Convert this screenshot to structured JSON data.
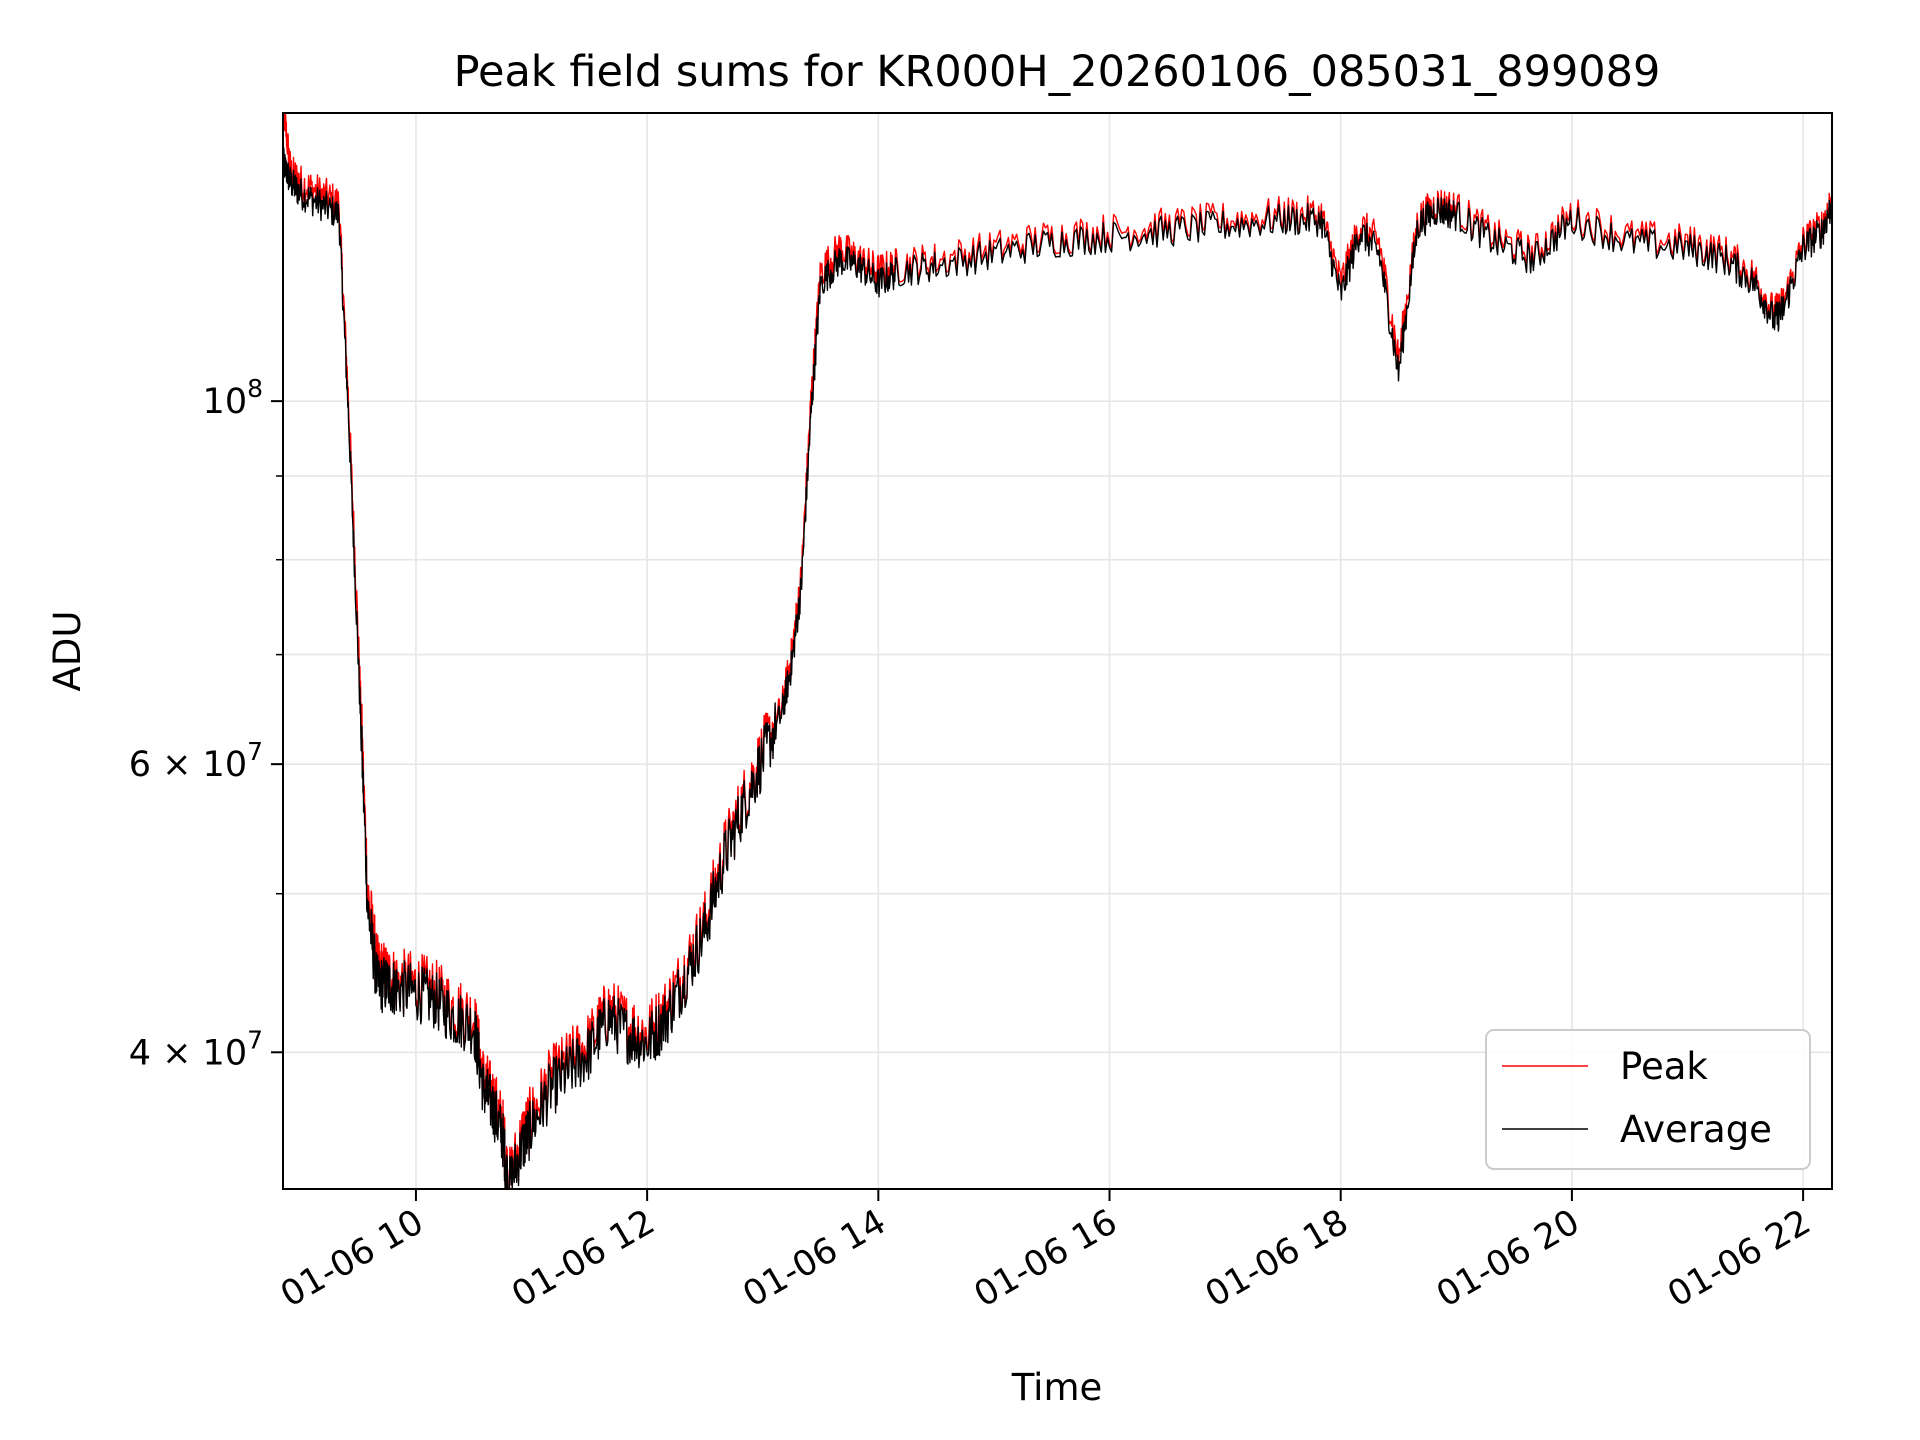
{
  "chart_data": {
    "type": "line",
    "title": "Peak field sums for KR000H_20260106_085031_899089",
    "xlabel": "Time",
    "ylabel": "ADU",
    "y_scale": "log",
    "xlim": [
      "2026-01-06 08:51",
      "2026-01-06 22:15"
    ],
    "ylim": [
      33000000,
      150000000
    ],
    "grid": true,
    "legend_position": "lower-right",
    "x_ticks": [
      {
        "value": "2026-01-06 10:00",
        "label": "01-06 10"
      },
      {
        "value": "2026-01-06 12:00",
        "label": "01-06 12"
      },
      {
        "value": "2026-01-06 14:00",
        "label": "01-06 14"
      },
      {
        "value": "2026-01-06 16:00",
        "label": "01-06 16"
      },
      {
        "value": "2026-01-06 18:00",
        "label": "01-06 18"
      },
      {
        "value": "2026-01-06 20:00",
        "label": "01-06 20"
      },
      {
        "value": "2026-01-06 22:00",
        "label": "01-06 22"
      }
    ],
    "y_ticks": [
      {
        "value": 40000000,
        "mantissa": "4 × ",
        "base": "10",
        "exp": "7"
      },
      {
        "value": 60000000,
        "mantissa": "6 × ",
        "base": "10",
        "exp": "7"
      },
      {
        "value": 100000000,
        "mantissa": "",
        "base": "10",
        "exp": "8"
      }
    ],
    "y_minor_ticks": [
      50000000,
      70000000,
      80000000,
      90000000
    ],
    "x": [
      "2026-01-06 08:51",
      "2026-01-06 08:55",
      "2026-01-06 09:00",
      "2026-01-06 09:10",
      "2026-01-06 09:20",
      "2026-01-06 09:25",
      "2026-01-06 09:30",
      "2026-01-06 09:35",
      "2026-01-06 09:40",
      "2026-01-06 09:45",
      "2026-01-06 09:50",
      "2026-01-06 10:00",
      "2026-01-06 10:10",
      "2026-01-06 10:20",
      "2026-01-06 10:30",
      "2026-01-06 10:35",
      "2026-01-06 10:40",
      "2026-01-06 10:45",
      "2026-01-06 10:48",
      "2026-01-06 10:55",
      "2026-01-06 11:00",
      "2026-01-06 11:10",
      "2026-01-06 11:20",
      "2026-01-06 11:30",
      "2026-01-06 11:40",
      "2026-01-06 11:50",
      "2026-01-06 12:00",
      "2026-01-06 12:10",
      "2026-01-06 12:20",
      "2026-01-06 12:30",
      "2026-01-06 12:40",
      "2026-01-06 12:50",
      "2026-01-06 13:00",
      "2026-01-06 13:10",
      "2026-01-06 13:15",
      "2026-01-06 13:20",
      "2026-01-06 13:25",
      "2026-01-06 13:30",
      "2026-01-06 13:40",
      "2026-01-06 13:50",
      "2026-01-06 14:00",
      "2026-01-06 14:10",
      "2026-01-06 14:30",
      "2026-01-06 15:00",
      "2026-01-06 15:30",
      "2026-01-06 16:00",
      "2026-01-06 16:30",
      "2026-01-06 17:00",
      "2026-01-06 17:30",
      "2026-01-06 17:50",
      "2026-01-06 18:00",
      "2026-01-06 18:10",
      "2026-01-06 18:20",
      "2026-01-06 18:30",
      "2026-01-06 18:40",
      "2026-01-06 18:50",
      "2026-01-06 19:00",
      "2026-01-06 19:20",
      "2026-01-06 19:40",
      "2026-01-06 20:00",
      "2026-01-06 20:30",
      "2026-01-06 21:00",
      "2026-01-06 21:20",
      "2026-01-06 21:35",
      "2026-01-06 21:45",
      "2026-01-06 21:50",
      "2026-01-06 22:00",
      "2026-01-06 22:10",
      "2026-01-06 22:15"
    ],
    "series": [
      {
        "name": "Peak",
        "color": "#ff0000",
        "values": [
          152000000,
          138000000,
          136000000,
          134000000,
          132000000,
          100000000,
          72000000,
          50000000,
          45000000,
          44500000,
          44200000,
          44000000,
          43500000,
          42500000,
          42000000,
          38500000,
          37500000,
          36000000,
          33200000,
          35500000,
          36500000,
          38500000,
          39500000,
          40500000,
          42500000,
          41500000,
          41000000,
          42500000,
          45000000,
          48000000,
          53000000,
          57000000,
          61000000,
          65000000,
          70000000,
          78000000,
          100000000,
          120000000,
          124000000,
          122000000,
          120000000,
          121000000,
          122000000,
          124000000,
          126000000,
          127000000,
          128000000,
          129000000,
          130000000,
          130000000,
          118000000,
          128000000,
          125000000,
          106000000,
          129000000,
          132000000,
          131000000,
          126000000,
          123000000,
          130000000,
          126000000,
          125000000,
          123000000,
          119000000,
          113000000,
          115000000,
          125000000,
          128000000,
          133000000
        ]
      },
      {
        "name": "Average",
        "color": "#000000",
        "values": [
          140000000,
          136000000,
          134000000,
          132000000,
          130000000,
          98000000,
          70000000,
          49000000,
          44000000,
          44000000,
          43800000,
          43500000,
          43000000,
          42000000,
          41500000,
          38000000,
          37000000,
          35500000,
          33000000,
          35000000,
          36000000,
          38000000,
          39000000,
          40000000,
          42000000,
          41000000,
          40500000,
          42000000,
          44500000,
          47500000,
          52500000,
          56500000,
          60500000,
          64500000,
          69000000,
          77000000,
          98000000,
          118000000,
          122000000,
          121000000,
          118000000,
          120000000,
          121000000,
          123000000,
          125000000,
          126000000,
          127000000,
          128000000,
          129000000,
          129000000,
          116000000,
          127000000,
          123000000,
          104000000,
          128000000,
          131000000,
          130000000,
          125000000,
          122000000,
          129000000,
          125000000,
          124000000,
          122000000,
          118000000,
          112000000,
          114000000,
          124000000,
          127000000,
          132000000
        ]
      }
    ]
  }
}
